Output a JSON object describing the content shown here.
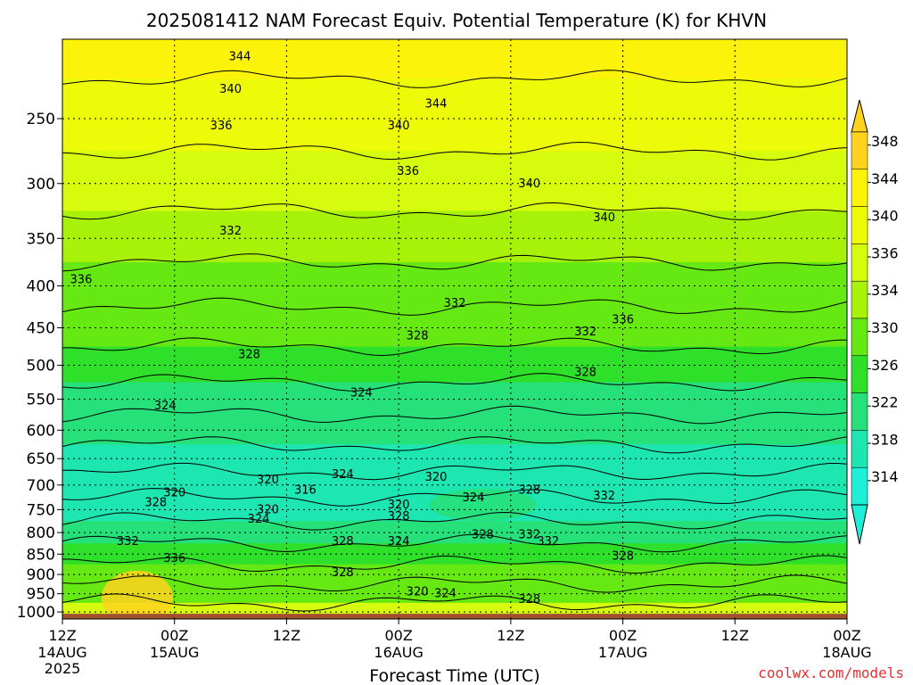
{
  "chart_data": {
    "type": "heatmap",
    "title": "2025081412 NAM Forecast Equiv. Potential Temperature (K) for KHVN",
    "xlabel": "Forecast Time (UTC)",
    "ylabel": "",
    "credit": "coolwx.com/models",
    "x_ticks": [
      {
        "top": "12Z",
        "bottom": "14AUG",
        "extra": "2025"
      },
      {
        "top": "00Z",
        "bottom": "15AUG"
      },
      {
        "top": "12Z",
        "bottom": ""
      },
      {
        "top": "00Z",
        "bottom": "16AUG"
      },
      {
        "top": "12Z",
        "bottom": ""
      },
      {
        "top": "00Z",
        "bottom": "17AUG"
      },
      {
        "top": "12Z",
        "bottom": ""
      },
      {
        "top": "00Z",
        "bottom": "18AUG"
      }
    ],
    "x_range_hours": [
      0,
      84
    ],
    "y_ticks": [
      250,
      300,
      350,
      400,
      450,
      500,
      550,
      600,
      650,
      700,
      750,
      800,
      850,
      900,
      950,
      1000
    ],
    "y_range": [
      1020,
      200
    ],
    "y_scale": "log",
    "colorbar_levels": [
      314,
      318,
      322,
      326,
      330,
      334,
      336,
      340,
      344,
      348
    ],
    "colorbar_labels": [
      "348",
      "344",
      "340",
      "336",
      "334",
      "330",
      "326",
      "322",
      "318",
      "314"
    ],
    "colorbar_colors": [
      "#ffd21e",
      "#fbf30a",
      "#eefb08",
      "#d6fb0c",
      "#a8f20a",
      "#66e812",
      "#2ee02a",
      "#26e07a",
      "#1ee6b0",
      "#1ef0d8"
    ],
    "grid": true,
    "profiles": [
      {
        "p": 200,
        "theta": 344
      },
      {
        "p": 250,
        "theta": 340
      },
      {
        "p": 300,
        "theta": 337
      },
      {
        "p": 350,
        "theta": 334
      },
      {
        "p": 400,
        "theta": 332
      },
      {
        "p": 450,
        "theta": 330
      },
      {
        "p": 500,
        "theta": 327
      },
      {
        "p": 550,
        "theta": 325
      },
      {
        "p": 600,
        "theta": 323
      },
      {
        "p": 650,
        "theta": 321
      },
      {
        "p": 700,
        "theta": 319
      },
      {
        "p": 750,
        "theta": 320
      },
      {
        "p": 800,
        "theta": 324
      },
      {
        "p": 850,
        "theta": 328
      },
      {
        "p": 900,
        "theta": 330
      },
      {
        "p": 950,
        "theta": 332
      },
      {
        "p": 1000,
        "theta": 338
      }
    ],
    "contour_labels": [
      {
        "t": 19,
        "p": 210,
        "label": "344"
      },
      {
        "t": 40,
        "p": 240,
        "label": "344"
      },
      {
        "t": 18,
        "p": 230,
        "label": "340"
      },
      {
        "t": 36,
        "p": 255,
        "label": "340"
      },
      {
        "t": 17,
        "p": 255,
        "label": "336"
      },
      {
        "t": 37,
        "p": 290,
        "label": "336"
      },
      {
        "t": 50,
        "p": 300,
        "label": "340"
      },
      {
        "t": 58,
        "p": 330,
        "label": "340"
      },
      {
        "t": 2,
        "p": 393,
        "label": "336"
      },
      {
        "t": 18,
        "p": 343,
        "label": "332"
      },
      {
        "t": 42,
        "p": 420,
        "label": "332"
      },
      {
        "t": 60,
        "p": 440,
        "label": "336"
      },
      {
        "t": 56,
        "p": 455,
        "label": "332"
      },
      {
        "t": 20,
        "p": 485,
        "label": "328"
      },
      {
        "t": 38,
        "p": 460,
        "label": "328"
      },
      {
        "t": 11,
        "p": 560,
        "label": "324"
      },
      {
        "t": 32,
        "p": 540,
        "label": "324"
      },
      {
        "t": 56,
        "p": 510,
        "label": "328"
      },
      {
        "t": 30,
        "p": 680,
        "label": "324"
      },
      {
        "t": 22,
        "p": 690,
        "label": "320"
      },
      {
        "t": 26,
        "p": 710,
        "label": "316"
      },
      {
        "t": 40,
        "p": 685,
        "label": "320"
      },
      {
        "t": 12,
        "p": 715,
        "label": "320"
      },
      {
        "t": 22,
        "p": 750,
        "label": "320"
      },
      {
        "t": 10,
        "p": 735,
        "label": "328"
      },
      {
        "t": 21,
        "p": 770,
        "label": "324"
      },
      {
        "t": 36,
        "p": 740,
        "label": "320"
      },
      {
        "t": 36,
        "p": 765,
        "label": "328"
      },
      {
        "t": 44,
        "p": 725,
        "label": "324"
      },
      {
        "t": 50,
        "p": 710,
        "label": "328"
      },
      {
        "t": 58,
        "p": 722,
        "label": "332"
      },
      {
        "t": 7,
        "p": 820,
        "label": "332"
      },
      {
        "t": 12,
        "p": 860,
        "label": "336"
      },
      {
        "t": 30,
        "p": 820,
        "label": "328"
      },
      {
        "t": 36,
        "p": 820,
        "label": "324"
      },
      {
        "t": 45,
        "p": 805,
        "label": "328"
      },
      {
        "t": 50,
        "p": 805,
        "label": "332"
      },
      {
        "t": 52,
        "p": 820,
        "label": "332"
      },
      {
        "t": 60,
        "p": 855,
        "label": "328"
      },
      {
        "t": 30,
        "p": 895,
        "label": "328"
      },
      {
        "t": 38,
        "p": 945,
        "label": "320"
      },
      {
        "t": 41,
        "p": 950,
        "label": "324"
      },
      {
        "t": 50,
        "p": 965,
        "label": "328"
      }
    ]
  }
}
